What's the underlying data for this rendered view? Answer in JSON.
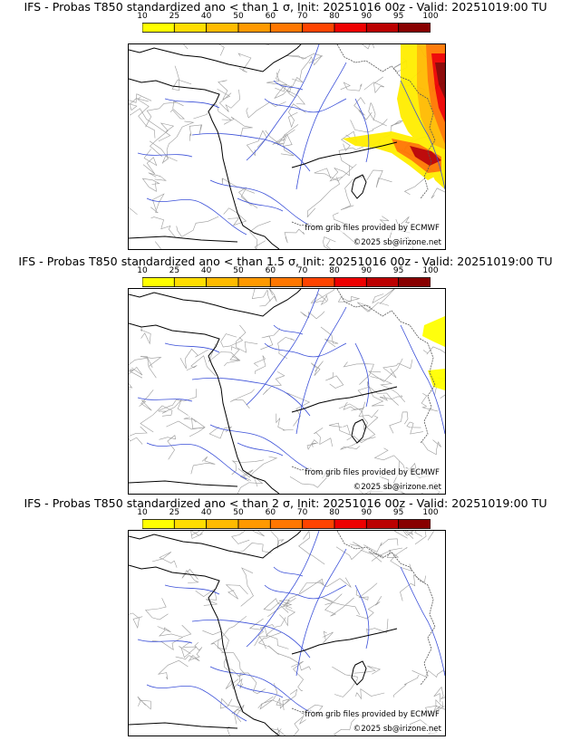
{
  "colorbar": {
    "ticks": [
      "10",
      "25",
      "40",
      "50",
      "60",
      "70",
      "80",
      "90",
      "95",
      "100"
    ],
    "colors": [
      "#ffff00",
      "#ffdd00",
      "#ffbb00",
      "#ff9900",
      "#ff7700",
      "#ff4400",
      "#ee0000",
      "#bb0000",
      "#880000",
      "#550000"
    ]
  },
  "panels": [
    {
      "title": "IFS - Probas T850  standardized ano < than 1 σ, Init: 20251016 00z - Valid: 20251019:00 TU",
      "credit_source": "from grib files provided by ECMWF",
      "credit_copyright": "©2025 sb@irizone.net"
    },
    {
      "title": "IFS - Probas T850  standardized ano < than 1.5 σ, Init: 20251016 00z - Valid: 20251019:00 TU",
      "credit_source": "from grib files provided by ECMWF",
      "credit_copyright": "©2025 sb@irizone.net"
    },
    {
      "title": "IFS - Probas T850  standardized ano < than 2 σ, Init: 20251016 00z - Valid: 20251019:00 TU",
      "credit_source": "from grib files provided by ECMWF",
      "credit_copyright": "©2025 sb@irizone.net"
    }
  ]
}
